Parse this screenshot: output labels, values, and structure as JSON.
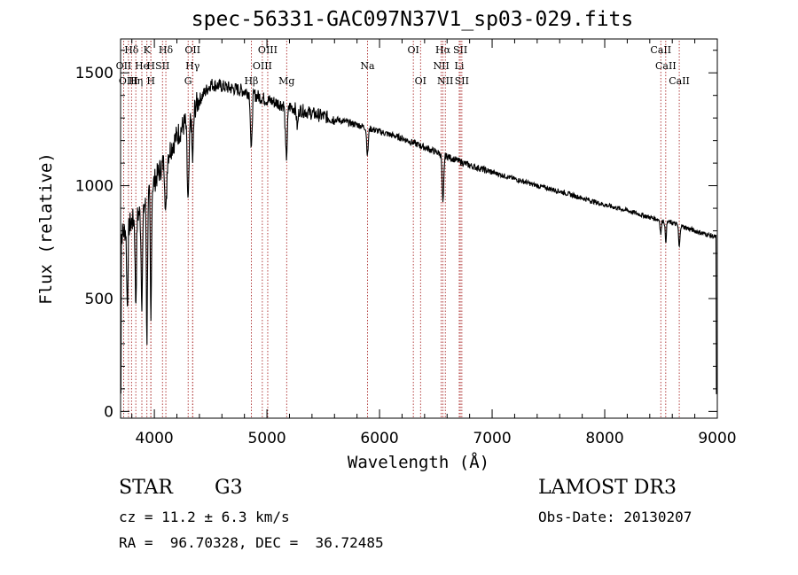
{
  "chart_data": {
    "type": "line",
    "title": "spec-56331-GAC097N37V1_sp03-029.fits",
    "xlabel": "Wavelength (Å)",
    "ylabel": "Flux (relative)",
    "xlim": [
      3700,
      9000
    ],
    "ylim": [
      -30,
      1650
    ],
    "xticks": [
      4000,
      5000,
      6000,
      7000,
      8000,
      9000
    ],
    "yticks": [
      0,
      500,
      1000,
      1500
    ],
    "line_color": "#000000",
    "marker_color": "#a01010",
    "continuum": [
      [
        3700,
        780
      ],
      [
        3800,
        840
      ],
      [
        3900,
        900
      ],
      [
        4000,
        1020
      ],
      [
        4100,
        1120
      ],
      [
        4200,
        1220
      ],
      [
        4300,
        1300
      ],
      [
        4400,
        1380
      ],
      [
        4500,
        1450
      ],
      [
        4600,
        1440
      ],
      [
        4700,
        1430
      ],
      [
        4800,
        1420
      ],
      [
        4900,
        1400
      ],
      [
        5000,
        1380
      ],
      [
        5200,
        1350
      ],
      [
        5400,
        1320
      ],
      [
        5600,
        1295
      ],
      [
        5800,
        1270
      ],
      [
        6000,
        1240
      ],
      [
        6200,
        1210
      ],
      [
        6400,
        1170
      ],
      [
        6600,
        1130
      ],
      [
        6800,
        1090
      ],
      [
        7000,
        1060
      ],
      [
        7200,
        1030
      ],
      [
        7400,
        1000
      ],
      [
        7600,
        975
      ],
      [
        7800,
        945
      ],
      [
        8000,
        915
      ],
      [
        8200,
        890
      ],
      [
        8400,
        860
      ],
      [
        8600,
        835
      ],
      [
        8800,
        800
      ],
      [
        9000,
        770
      ]
    ],
    "absorption": [
      {
        "w": 3760,
        "depth": 350,
        "width": 8
      },
      {
        "w": 3835,
        "depth": 380,
        "width": 8
      },
      {
        "w": 3889,
        "depth": 400,
        "width": 9
      },
      {
        "w": 3934,
        "depth": 620,
        "width": 7
      },
      {
        "w": 3969,
        "depth": 600,
        "width": 7
      },
      {
        "w": 4102,
        "depth": 250,
        "width": 10
      },
      {
        "w": 4300,
        "depth": 380,
        "width": 12
      },
      {
        "w": 4340,
        "depth": 220,
        "width": 10
      },
      {
        "w": 4861,
        "depth": 260,
        "width": 10
      },
      {
        "w": 5172,
        "depth": 230,
        "width": 12
      },
      {
        "w": 5270,
        "depth": 80,
        "width": 10
      },
      {
        "w": 5893,
        "depth": 120,
        "width": 10
      },
      {
        "w": 6563,
        "depth": 220,
        "width": 10
      },
      {
        "w": 8498,
        "depth": 60,
        "width": 8
      },
      {
        "w": 8542,
        "depth": 90,
        "width": 8
      },
      {
        "w": 8662,
        "depth": 100,
        "width": 8
      }
    ],
    "line_markers": [
      {
        "label": "Hδ",
        "w": 3797,
        "row": 0
      },
      {
        "label": "K",
        "w": 3934,
        "row": 0
      },
      {
        "label": "Hδ",
        "w": 4102,
        "row": 0
      },
      {
        "label": "OII",
        "w": 4340,
        "row": 0
      },
      {
        "label": "OIII",
        "w": 5007,
        "row": 0
      },
      {
        "label": "OI",
        "w": 6300,
        "row": 0
      },
      {
        "label": "Hα",
        "w": 6563,
        "row": 0
      },
      {
        "label": "SII",
        "w": 6717,
        "row": 0
      },
      {
        "label": "CaII",
        "w": 8498,
        "row": 0
      },
      {
        "label": "OII",
        "w": 3727,
        "row": 1
      },
      {
        "label": "He",
        "w": 3889,
        "row": 1
      },
      {
        "label": "H",
        "w": 3969,
        "row": 1
      },
      {
        "label": "SII",
        "w": 4072,
        "row": 1
      },
      {
        "label": "Hγ",
        "w": 4340,
        "row": 1
      },
      {
        "label": "OIII",
        "w": 4959,
        "row": 1
      },
      {
        "label": "Na",
        "w": 5893,
        "row": 1
      },
      {
        "label": "NII",
        "w": 6548,
        "row": 1
      },
      {
        "label": "Li",
        "w": 6708,
        "row": 1
      },
      {
        "label": "CaII",
        "w": 8542,
        "row": 1
      },
      {
        "label": "OIII",
        "w": 3770,
        "row": 2
      },
      {
        "label": "Hη",
        "w": 3835,
        "row": 2
      },
      {
        "label": "H",
        "w": 3969,
        "row": 2
      },
      {
        "label": "G",
        "w": 4300,
        "row": 2
      },
      {
        "label": "Hβ",
        "w": 4861,
        "row": 2
      },
      {
        "label": "Mg",
        "w": 5175,
        "row": 2
      },
      {
        "label": "OI",
        "w": 6364,
        "row": 2
      },
      {
        "label": "NII",
        "w": 6584,
        "row": 2
      },
      {
        "label": "SII",
        "w": 6731,
        "row": 2
      },
      {
        "label": "CaII",
        "w": 8662,
        "row": 2
      }
    ]
  },
  "info": {
    "object_class": "STAR",
    "subclass": "G3",
    "survey": "LAMOST DR3",
    "cz": "cz = 11.2 ± 6.3 km/s",
    "obs_date": "Obs-Date: 20130207",
    "coords": "RA =  96.70328, DEC =  36.72485"
  }
}
